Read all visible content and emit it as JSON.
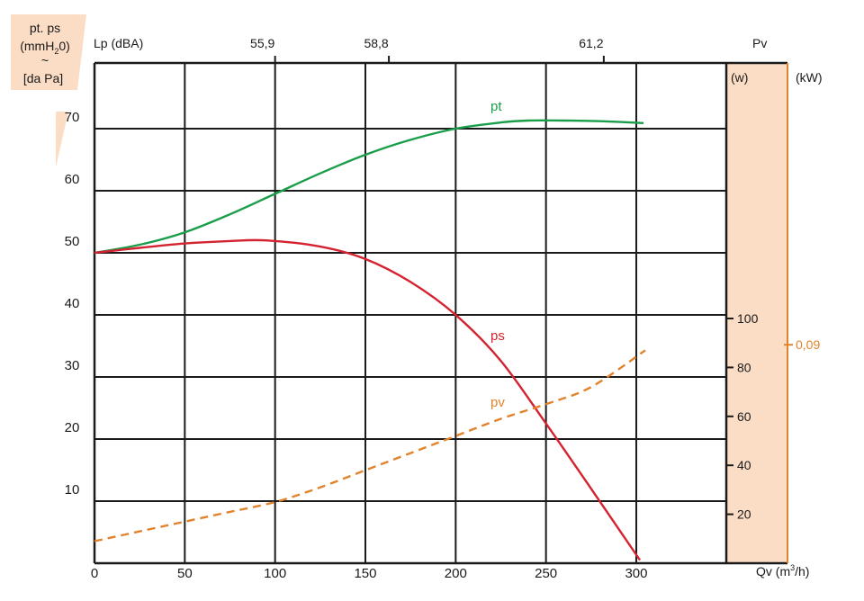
{
  "chart_data": {
    "type": "line",
    "x_axis": {
      "label": "Qv (m3/h)",
      "label_main": "Qv (m",
      "label_sup": "3",
      "label_end": "/h)",
      "ticks": [
        0,
        50,
        100,
        150,
        200,
        250,
        300
      ],
      "range": [
        0,
        350
      ]
    },
    "y_axis_left": {
      "label_lines": [
        "pt. ps",
        "(mmH",
        "2",
        "0)",
        "~",
        "[da Pa]"
      ],
      "label_line1": "pt. ps",
      "label_line2_main": "(mmH",
      "label_line2_sub": "2",
      "label_line2_end": "0)",
      "label_line3": "~",
      "label_line4": "[da Pa]",
      "ticks": [
        10,
        20,
        30,
        40,
        50,
        60,
        70
      ],
      "range": [
        0,
        80
      ]
    },
    "y_axis_right": {
      "label": "Pv",
      "unit_w": "(w)",
      "unit_kw": "(kW)",
      "ticks_w": [
        20,
        40,
        60,
        80,
        100
      ],
      "range_w": [
        0,
        200
      ],
      "kw_tick": "0,09",
      "kw_tick_value_w": 90
    },
    "top_axis": {
      "label": "Lp (dBA)",
      "ticks": [
        {
          "x": 100,
          "label": "55,9"
        },
        {
          "x": 163,
          "label": "58,8"
        },
        {
          "x": 282,
          "label": "61,2"
        }
      ]
    },
    "grid": true,
    "colors": {
      "pt": "#1a9e4a",
      "ps": "#d42230",
      "pv": "#e2832b",
      "panel": "#fbdcc4",
      "grid": "#1a1a1a"
    },
    "series": [
      {
        "name": "pt",
        "axis": "left",
        "style": "solid",
        "x": [
          0,
          25,
          50,
          75,
          100,
          125,
          150,
          175,
          200,
          225,
          240,
          260,
          280,
          304
        ],
        "y": [
          50,
          51.3,
          53.3,
          56.2,
          59.5,
          62.8,
          65.8,
          68.2,
          70,
          71,
          71.3,
          71.3,
          71.2,
          70.9
        ]
      },
      {
        "name": "ps",
        "axis": "left",
        "style": "solid",
        "x": [
          0,
          25,
          50,
          75,
          95,
          125,
          150,
          175,
          200,
          225,
          250,
          275,
          302
        ],
        "y": [
          50,
          50.8,
          51.5,
          51.9,
          52,
          51,
          49,
          45.3,
          40,
          32.6,
          22.5,
          12,
          0.5
        ]
      },
      {
        "name": "pv",
        "axis": "right",
        "style": "dashed",
        "x": [
          0,
          25,
          50,
          75,
          100,
          125,
          150,
          175,
          200,
          225,
          250,
          275,
          305
        ],
        "y": [
          9,
          13,
          17,
          21,
          25,
          31,
          38,
          45,
          52,
          59,
          65,
          72,
          87
        ]
      }
    ]
  }
}
